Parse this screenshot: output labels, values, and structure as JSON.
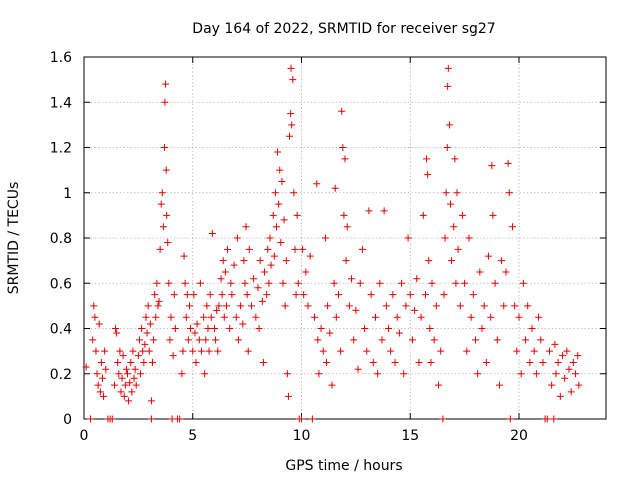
{
  "chart_data": {
    "type": "scatter",
    "title": "Day 164 of 2022, SRMTID for receiver sg27",
    "xlabel": "GPS time / hours",
    "ylabel": "SRMTID / TECUs",
    "xlim": [
      0,
      24
    ],
    "ylim": [
      0,
      1.6
    ],
    "xticks": [
      0,
      5,
      10,
      15,
      20
    ],
    "xtick_labels": [
      "0",
      "5",
      "10",
      "15",
      "20"
    ],
    "yticks": [
      0,
      0.2,
      0.4,
      0.6,
      0.8,
      1.0,
      1.2,
      1.4,
      1.6
    ],
    "ytick_labels": [
      "0",
      "0.2",
      "0.4",
      "0.6",
      "0.8",
      "1",
      "1.2",
      "1.4",
      "1.6"
    ],
    "grid": true,
    "marker": "+",
    "color": "#e00000",
    "series": [
      {
        "name": "SRMTID",
        "points": [
          [
            0.1,
            0.23
          ],
          [
            0.3,
            0.0
          ],
          [
            0.4,
            0.35
          ],
          [
            0.45,
            0.5
          ],
          [
            0.5,
            0.45
          ],
          [
            0.55,
            0.3
          ],
          [
            0.6,
            0.2
          ],
          [
            0.65,
            0.15
          ],
          [
            0.7,
            0.42
          ],
          [
            0.75,
            0.12
          ],
          [
            0.8,
            0.25
          ],
          [
            0.85,
            0.18
          ],
          [
            0.9,
            0.1
          ],
          [
            0.95,
            0.3
          ],
          [
            1.0,
            0.22
          ],
          [
            1.1,
            0.0
          ],
          [
            1.2,
            0.0
          ],
          [
            1.3,
            0.0
          ],
          [
            1.4,
            0.15
          ],
          [
            1.45,
            0.4
          ],
          [
            1.5,
            0.38
          ],
          [
            1.55,
            0.25
          ],
          [
            1.6,
            0.2
          ],
          [
            1.65,
            0.3
          ],
          [
            1.7,
            0.12
          ],
          [
            1.75,
            0.18
          ],
          [
            1.8,
            0.28
          ],
          [
            1.85,
            0.1
          ],
          [
            1.9,
            0.15
          ],
          [
            1.95,
            0.22
          ],
          [
            2.0,
            0.2
          ],
          [
            2.05,
            0.08
          ],
          [
            2.1,
            0.16
          ],
          [
            2.15,
            0.25
          ],
          [
            2.2,
            0.12
          ],
          [
            2.25,
            0.3
          ],
          [
            2.3,
            0.18
          ],
          [
            2.35,
            0.22
          ],
          [
            2.4,
            0.15
          ],
          [
            2.5,
            0.28
          ],
          [
            2.55,
            0.35
          ],
          [
            2.6,
            0.2
          ],
          [
            2.65,
            0.4
          ],
          [
            2.7,
            0.3
          ],
          [
            2.75,
            0.25
          ],
          [
            2.8,
            0.33
          ],
          [
            2.85,
            0.45
          ],
          [
            2.9,
            0.38
          ],
          [
            2.95,
            0.5
          ],
          [
            3.0,
            0.3
          ],
          [
            3.05,
            0.42
          ],
          [
            3.1,
            0.08
          ],
          [
            3.1,
            0.0
          ],
          [
            3.15,
            0.25
          ],
          [
            3.2,
            0.35
          ],
          [
            3.25,
            0.55
          ],
          [
            3.3,
            0.45
          ],
          [
            3.35,
            0.6
          ],
          [
            3.4,
            0.5
          ],
          [
            3.45,
            0.52
          ],
          [
            3.5,
            0.75
          ],
          [
            3.55,
            0.95
          ],
          [
            3.6,
            1.0
          ],
          [
            3.65,
            0.85
          ],
          [
            3.7,
            1.2
          ],
          [
            3.72,
            1.4
          ],
          [
            3.75,
            1.48
          ],
          [
            3.78,
            1.1
          ],
          [
            3.8,
            0.9
          ],
          [
            3.85,
            0.78
          ],
          [
            3.9,
            0.6
          ],
          [
            3.95,
            0.35
          ],
          [
            4.0,
            0.45
          ],
          [
            4.05,
            0.0
          ],
          [
            4.1,
            0.28
          ],
          [
            4.15,
            0.55
          ],
          [
            4.2,
            0.4
          ],
          [
            4.3,
            0.0
          ],
          [
            4.4,
            0.0
          ],
          [
            4.5,
            0.2
          ],
          [
            4.55,
            0.3
          ],
          [
            4.6,
            0.72
          ],
          [
            4.65,
            0.6
          ],
          [
            4.7,
            0.45
          ],
          [
            4.75,
            0.55
          ],
          [
            4.8,
            0.35
          ],
          [
            4.85,
            0.5
          ],
          [
            4.9,
            0.4
          ],
          [
            5.0,
            0.3
          ],
          [
            5.05,
            0.55
          ],
          [
            5.1,
            0.38
          ],
          [
            5.15,
            0.25
          ],
          [
            5.2,
            0.42
          ],
          [
            5.3,
            0.35
          ],
          [
            5.35,
            0.6
          ],
          [
            5.4,
            0.3
          ],
          [
            5.5,
            0.45
          ],
          [
            5.55,
            0.2
          ],
          [
            5.6,
            0.35
          ],
          [
            5.65,
            0.5
          ],
          [
            5.7,
            0.4
          ],
          [
            5.75,
            0.3
          ],
          [
            5.8,
            0.55
          ],
          [
            5.85,
            0.45
          ],
          [
            5.9,
            0.82
          ],
          [
            6.0,
            0.4
          ],
          [
            6.05,
            0.35
          ],
          [
            6.1,
            0.48
          ],
          [
            6.15,
            0.3
          ],
          [
            6.2,
            0.5
          ],
          [
            6.3,
            0.62
          ],
          [
            6.35,
            0.55
          ],
          [
            6.4,
            0.7
          ],
          [
            6.45,
            0.45
          ],
          [
            6.5,
            0.65
          ],
          [
            6.55,
            0.5
          ],
          [
            6.6,
            0.75
          ],
          [
            6.7,
            0.4
          ],
          [
            6.75,
            0.6
          ],
          [
            6.8,
            0.55
          ],
          [
            6.9,
            0.68
          ],
          [
            7.0,
            0.45
          ],
          [
            7.05,
            0.8
          ],
          [
            7.1,
            0.35
          ],
          [
            7.2,
            0.5
          ],
          [
            7.3,
            0.42
          ],
          [
            7.35,
            0.7
          ],
          [
            7.4,
            0.6
          ],
          [
            7.45,
            0.85
          ],
          [
            7.5,
            0.55
          ],
          [
            7.55,
            0.3
          ],
          [
            7.6,
            0.75
          ],
          [
            7.7,
            0.5
          ],
          [
            7.8,
            0.62
          ],
          [
            7.9,
            0.45
          ],
          [
            8.0,
            0.58
          ],
          [
            8.05,
            0.4
          ],
          [
            8.1,
            0.7
          ],
          [
            8.2,
            0.52
          ],
          [
            8.25,
            0.25
          ],
          [
            8.3,
            0.65
          ],
          [
            8.4,
            0.55
          ],
          [
            8.45,
            0.75
          ],
          [
            8.5,
            0.6
          ],
          [
            8.55,
            0.8
          ],
          [
            8.6,
            0.68
          ],
          [
            8.7,
            0.9
          ],
          [
            8.75,
            0.72
          ],
          [
            8.8,
            1.0
          ],
          [
            8.85,
            0.85
          ],
          [
            8.9,
            1.18
          ],
          [
            8.95,
            0.95
          ],
          [
            9.0,
            1.1
          ],
          [
            9.05,
            0.78
          ],
          [
            9.1,
            1.05
          ],
          [
            9.15,
            0.6
          ],
          [
            9.2,
            0.88
          ],
          [
            9.25,
            0.5
          ],
          [
            9.3,
            0.7
          ],
          [
            9.35,
            0.2
          ],
          [
            9.4,
            0.1
          ],
          [
            9.45,
            1.25
          ],
          [
            9.5,
            1.35
          ],
          [
            9.52,
            1.55
          ],
          [
            9.55,
            1.3
          ],
          [
            9.6,
            1.5
          ],
          [
            9.65,
            1.0
          ],
          [
            9.7,
            0.75
          ],
          [
            9.75,
            0.55
          ],
          [
            9.8,
            0.9
          ],
          [
            9.85,
            0.6
          ],
          [
            9.9,
            0.0
          ],
          [
            10.0,
            0.0
          ],
          [
            10.05,
            0.75
          ],
          [
            10.1,
            0.55
          ],
          [
            10.2,
            0.65
          ],
          [
            10.3,
            0.5
          ],
          [
            10.4,
            0.72
          ],
          [
            10.5,
            0.0
          ],
          [
            10.6,
            0.45
          ],
          [
            10.7,
            1.04
          ],
          [
            10.75,
            0.35
          ],
          [
            10.8,
            0.2
          ],
          [
            10.9,
            0.4
          ],
          [
            11.0,
            0.3
          ],
          [
            11.1,
            0.8
          ],
          [
            11.15,
            0.25
          ],
          [
            11.2,
            0.5
          ],
          [
            11.3,
            0.38
          ],
          [
            11.4,
            0.15
          ],
          [
            11.5,
            0.6
          ],
          [
            11.55,
            1.02
          ],
          [
            11.6,
            0.45
          ],
          [
            11.7,
            0.55
          ],
          [
            11.8,
            0.3
          ],
          [
            11.85,
            1.36
          ],
          [
            11.9,
            1.2
          ],
          [
            11.95,
            0.9
          ],
          [
            12.0,
            1.15
          ],
          [
            12.05,
            0.7
          ],
          [
            12.1,
            0.85
          ],
          [
            12.2,
            0.5
          ],
          [
            12.3,
            0.62
          ],
          [
            12.4,
            0.35
          ],
          [
            12.5,
            0.48
          ],
          [
            12.6,
            0.22
          ],
          [
            12.7,
            0.6
          ],
          [
            12.8,
            0.75
          ],
          [
            12.9,
            0.4
          ],
          [
            13.0,
            0.3
          ],
          [
            13.1,
            0.92
          ],
          [
            13.2,
            0.55
          ],
          [
            13.3,
            0.25
          ],
          [
            13.4,
            0.45
          ],
          [
            13.5,
            0.2
          ],
          [
            13.6,
            0.6
          ],
          [
            13.7,
            0.35
          ],
          [
            13.8,
            0.92
          ],
          [
            13.9,
            0.5
          ],
          [
            14.0,
            0.4
          ],
          [
            14.1,
            0.3
          ],
          [
            14.2,
            0.55
          ],
          [
            14.3,
            0.25
          ],
          [
            14.4,
            0.45
          ],
          [
            14.5,
            0.38
          ],
          [
            14.6,
            0.6
          ],
          [
            14.7,
            0.2
          ],
          [
            14.8,
            0.5
          ],
          [
            14.9,
            0.8
          ],
          [
            15.0,
            0.55
          ],
          [
            15.1,
            0.35
          ],
          [
            15.2,
            0.48
          ],
          [
            15.3,
            0.62
          ],
          [
            15.4,
            0.25
          ],
          [
            15.5,
            0.45
          ],
          [
            15.6,
            0.9
          ],
          [
            15.7,
            0.55
          ],
          [
            15.75,
            1.15
          ],
          [
            15.8,
            1.08
          ],
          [
            15.85,
            0.7
          ],
          [
            15.9,
            0.4
          ],
          [
            15.95,
            0.25
          ],
          [
            16.0,
            0.6
          ],
          [
            16.1,
            0.35
          ],
          [
            16.2,
            0.5
          ],
          [
            16.3,
            0.15
          ],
          [
            16.4,
            0.3
          ],
          [
            16.5,
            0.0
          ],
          [
            16.55,
            0.55
          ],
          [
            16.6,
            0.8
          ],
          [
            16.65,
            1.0
          ],
          [
            16.7,
            1.2
          ],
          [
            16.72,
            1.47
          ],
          [
            16.75,
            1.55
          ],
          [
            16.8,
            1.3
          ],
          [
            16.85,
            0.95
          ],
          [
            16.9,
            0.7
          ],
          [
            17.0,
            0.85
          ],
          [
            17.05,
            1.15
          ],
          [
            17.1,
            0.6
          ],
          [
            17.15,
            1.0
          ],
          [
            17.2,
            0.75
          ],
          [
            17.3,
            0.5
          ],
          [
            17.4,
            0.9
          ],
          [
            17.5,
            0.6
          ],
          [
            17.6,
            0.3
          ],
          [
            17.7,
            0.8
          ],
          [
            17.8,
            0.45
          ],
          [
            17.9,
            0.55
          ],
          [
            18.0,
            0.35
          ],
          [
            18.1,
            0.2
          ],
          [
            18.2,
            0.65
          ],
          [
            18.3,
            0.4
          ],
          [
            18.4,
            0.5
          ],
          [
            18.5,
            0.25
          ],
          [
            18.6,
            0.72
          ],
          [
            18.7,
            0.45
          ],
          [
            18.75,
            1.12
          ],
          [
            18.8,
            0.9
          ],
          [
            18.9,
            0.6
          ],
          [
            19.0,
            0.35
          ],
          [
            19.1,
            0.15
          ],
          [
            19.2,
            0.7
          ],
          [
            19.3,
            0.5
          ],
          [
            19.4,
            0.65
          ],
          [
            19.5,
            1.13
          ],
          [
            19.55,
            1.0
          ],
          [
            19.6,
            0.0
          ],
          [
            19.7,
            0.85
          ],
          [
            19.8,
            0.5
          ],
          [
            19.9,
            0.3
          ],
          [
            20.0,
            0.45
          ],
          [
            20.1,
            0.2
          ],
          [
            20.2,
            0.6
          ],
          [
            20.3,
            0.35
          ],
          [
            20.4,
            0.5
          ],
          [
            20.5,
            0.25
          ],
          [
            20.6,
            0.4
          ],
          [
            20.7,
            0.3
          ],
          [
            20.8,
            0.2
          ],
          [
            20.9,
            0.45
          ],
          [
            21.0,
            0.35
          ],
          [
            21.1,
            0.25
          ],
          [
            21.2,
            0.0
          ],
          [
            21.3,
            0.0
          ],
          [
            21.4,
            0.3
          ],
          [
            21.5,
            0.15
          ],
          [
            21.6,
            0.0
          ],
          [
            21.65,
            0.33
          ],
          [
            21.7,
            0.2
          ],
          [
            21.8,
            0.25
          ],
          [
            21.9,
            0.1
          ],
          [
            22.0,
            0.28
          ],
          [
            22.1,
            0.18
          ],
          [
            22.2,
            0.3
          ],
          [
            22.3,
            0.22
          ],
          [
            22.4,
            0.12
          ],
          [
            22.5,
            0.25
          ],
          [
            22.6,
            0.2
          ],
          [
            22.7,
            0.28
          ],
          [
            22.75,
            0.15
          ]
        ]
      }
    ]
  }
}
